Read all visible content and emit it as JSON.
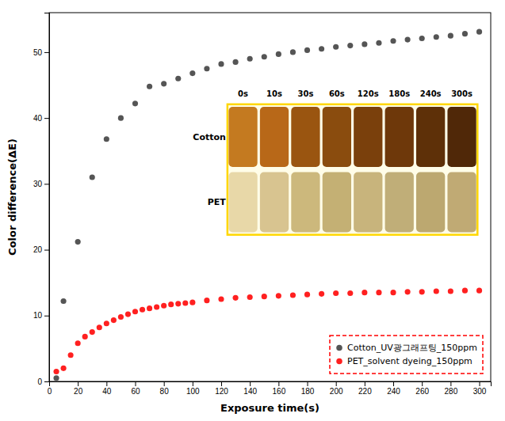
{
  "chart_data": {
    "type": "scatter",
    "xlabel": "Exposure time(s)",
    "ylabel": "Color difference(ΔE)",
    "xlim": [
      0,
      308
    ],
    "ylim": [
      0,
      56
    ],
    "xticks": [
      0,
      20,
      40,
      60,
      80,
      100,
      120,
      140,
      160,
      180,
      200,
      220,
      240,
      260,
      280,
      300
    ],
    "yticks": [
      0,
      10,
      20,
      30,
      40,
      50
    ],
    "grid": false,
    "legend": "lower right",
    "series": [
      {
        "name": "Cotton_UV광그래프팅_150ppm",
        "color": "#555555",
        "marker": "circle",
        "x": [
          5,
          10,
          20,
          30,
          40,
          50,
          60,
          70,
          80,
          90,
          100,
          110,
          120,
          130,
          140,
          150,
          160,
          170,
          180,
          190,
          200,
          210,
          220,
          230,
          240,
          250,
          260,
          270,
          280,
          290,
          300
        ],
        "values": [
          0.5,
          12.2,
          21.2,
          31.0,
          36.8,
          40.0,
          42.2,
          44.8,
          45.2,
          46.0,
          46.8,
          47.5,
          48.2,
          48.5,
          49.0,
          49.3,
          49.7,
          50.0,
          50.3,
          50.5,
          50.8,
          51.0,
          51.2,
          51.4,
          51.7,
          51.9,
          52.1,
          52.3,
          52.5,
          52.8,
          53.1
        ]
      },
      {
        "name": "PET_solvent dyeing_150ppm",
        "color": "#ff2020",
        "marker": "circle",
        "x": [
          5,
          10,
          15,
          20,
          25,
          30,
          35,
          40,
          45,
          50,
          55,
          60,
          65,
          70,
          75,
          80,
          85,
          90,
          95,
          100,
          110,
          120,
          130,
          140,
          150,
          160,
          170,
          180,
          190,
          200,
          210,
          220,
          230,
          240,
          250,
          260,
          270,
          280,
          290,
          300
        ],
        "values": [
          1.5,
          2.0,
          4.0,
          5.8,
          6.8,
          7.5,
          8.2,
          8.8,
          9.3,
          9.8,
          10.2,
          10.6,
          10.9,
          11.1,
          11.3,
          11.5,
          11.7,
          11.8,
          11.9,
          12.0,
          12.3,
          12.5,
          12.7,
          12.8,
          12.9,
          13.0,
          13.1,
          13.2,
          13.3,
          13.4,
          13.4,
          13.5,
          13.5,
          13.5,
          13.6,
          13.6,
          13.7,
          13.7,
          13.8,
          13.8
        ]
      }
    ],
    "inset": {
      "columns": [
        "0s",
        "10s",
        "30s",
        "60s",
        "120s",
        "180s",
        "240s",
        "300s"
      ],
      "rows": [
        {
          "name": "Cotton",
          "colors": [
            "#c47a20",
            "#b86818",
            "#9a5510",
            "#8a4c0e",
            "#7a400c",
            "#6e380a",
            "#5e3008",
            "#502808"
          ]
        },
        {
          "name": "PET",
          "colors": [
            "#e8d8a8",
            "#d8c490",
            "#ccb87c",
            "#c4b074",
            "#c8b47c",
            "#c0ae78",
            "#bca870",
            "#c0aa74"
          ]
        }
      ]
    }
  }
}
